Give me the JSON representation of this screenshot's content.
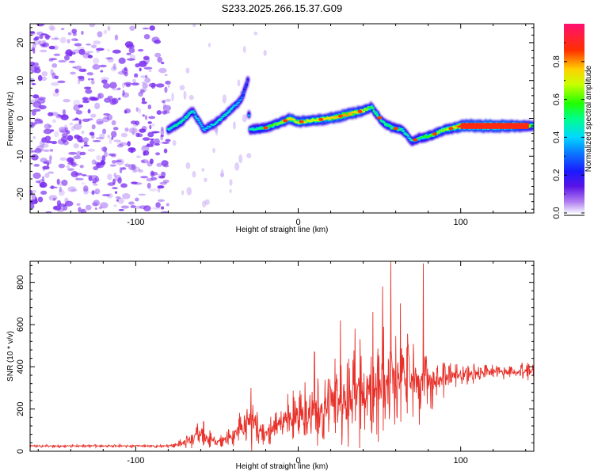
{
  "title": "S233.2025.266.15.37.G09",
  "colors": {
    "snr_line": "#e8312a",
    "scatter_blob": "#7a2cf0",
    "frame": "#000000"
  },
  "chart_data": [
    {
      "type": "heatmap",
      "name": "spectrogram",
      "xlabel": "Height of straight line (km)",
      "ylabel": "Frequency (Hz)",
      "xlim": [
        -165,
        145
      ],
      "ylim": [
        -25,
        25
      ],
      "xticks": [
        -100,
        0,
        100
      ],
      "yticks": [
        -20,
        -10,
        0,
        10,
        20
      ],
      "colorbar": {
        "label": "Normalized spectral amplitude",
        "range": [
          0,
          1
        ],
        "ticks": [
          "0.0",
          "0.2",
          "0.4",
          "0.6",
          "0.8"
        ],
        "tick_values": [
          0.0,
          0.2,
          0.4,
          0.6,
          0.8
        ]
      },
      "noise_region_x": [
        -165,
        -80
      ],
      "ridge": [
        {
          "x": -80,
          "f": -3,
          "a": 0.45
        },
        {
          "x": -72,
          "f": -1,
          "a": 0.5
        },
        {
          "x": -65,
          "f": 2,
          "a": 0.45
        },
        {
          "x": -58,
          "f": -3,
          "a": 0.4
        },
        {
          "x": -50,
          "f": -1,
          "a": 0.45
        },
        {
          "x": -42,
          "f": 2,
          "a": 0.45
        },
        {
          "x": -35,
          "f": 5,
          "a": 0.35
        },
        {
          "x": -31,
          "f": 10,
          "a": 0.25
        },
        {
          "x": -30,
          "f": -3,
          "a": 0.45
        },
        {
          "x": -20,
          "f": -2.5,
          "a": 0.55
        },
        {
          "x": -10,
          "f": -1,
          "a": 0.65
        },
        {
          "x": -5,
          "f": 0,
          "a": 0.75
        },
        {
          "x": 0,
          "f": -1,
          "a": 0.7
        },
        {
          "x": 10,
          "f": -0.5,
          "a": 0.7
        },
        {
          "x": 20,
          "f": 0,
          "a": 0.75
        },
        {
          "x": 30,
          "f": 1,
          "a": 0.8
        },
        {
          "x": 40,
          "f": 2,
          "a": 0.7
        },
        {
          "x": 45,
          "f": 3,
          "a": 0.55
        },
        {
          "x": 52,
          "f": -1,
          "a": 0.5
        },
        {
          "x": 58,
          "f": -2.5,
          "a": 0.55
        },
        {
          "x": 64,
          "f": -3,
          "a": 0.5
        },
        {
          "x": 70,
          "f": -6,
          "a": 0.45
        },
        {
          "x": 76,
          "f": -5,
          "a": 0.55
        },
        {
          "x": 82,
          "f": -4.5,
          "a": 0.6
        },
        {
          "x": 90,
          "f": -3,
          "a": 0.65
        },
        {
          "x": 96,
          "f": -2.5,
          "a": 0.7
        },
        {
          "x": 100,
          "f": -2,
          "a": 0.9
        },
        {
          "x": 110,
          "f": -2,
          "a": 0.95
        },
        {
          "x": 120,
          "f": -2,
          "a": 0.97
        },
        {
          "x": 130,
          "f": -2,
          "a": 0.9
        },
        {
          "x": 140,
          "f": -2,
          "a": 0.75
        },
        {
          "x": 145,
          "f": -2,
          "a": 0.5
        }
      ]
    },
    {
      "type": "line",
      "name": "snr",
      "xlabel": "Height of straight line (km)",
      "ylabel": "SNR (10 * v/v)",
      "xlim": [
        -165,
        145
      ],
      "ylim": [
        0,
        900
      ],
      "xticks": [
        -100,
        0,
        100
      ],
      "yticks": [
        0,
        200,
        400,
        600,
        800
      ],
      "envelope": [
        {
          "x": -165,
          "base": 25,
          "amp": 8
        },
        {
          "x": -80,
          "base": 25,
          "amp": 8
        },
        {
          "x": -70,
          "base": 40,
          "amp": 30
        },
        {
          "x": -60,
          "base": 80,
          "amp": 80
        },
        {
          "x": -50,
          "base": 45,
          "amp": 25
        },
        {
          "x": -40,
          "base": 70,
          "amp": 60
        },
        {
          "x": -28,
          "base": 150,
          "amp": 150
        },
        {
          "x": -20,
          "base": 80,
          "amp": 60
        },
        {
          "x": -10,
          "base": 150,
          "amp": 120
        },
        {
          "x": 0,
          "base": 180,
          "amp": 150
        },
        {
          "x": 10,
          "base": 170,
          "amp": 200
        },
        {
          "x": 20,
          "base": 230,
          "amp": 220
        },
        {
          "x": 30,
          "base": 250,
          "amp": 250
        },
        {
          "x": 40,
          "base": 280,
          "amp": 280
        },
        {
          "x": 50,
          "base": 310,
          "amp": 280
        },
        {
          "x": 58,
          "base": 330,
          "amp": 300
        },
        {
          "x": 65,
          "base": 340,
          "amp": 260
        },
        {
          "x": 75,
          "base": 320,
          "amp": 230
        },
        {
          "x": 85,
          "base": 330,
          "amp": 120
        },
        {
          "x": 95,
          "base": 360,
          "amp": 70
        },
        {
          "x": 110,
          "base": 370,
          "amp": 50
        },
        {
          "x": 125,
          "base": 375,
          "amp": 45
        },
        {
          "x": 145,
          "base": 380,
          "amp": 45
        }
      ],
      "peaks": [
        {
          "x": -29,
          "y": 300
        },
        {
          "x": 10,
          "y": 470
        },
        {
          "x": 26,
          "y": 620
        },
        {
          "x": 35,
          "y": 580
        },
        {
          "x": 46,
          "y": 660
        },
        {
          "x": 52,
          "y": 780
        },
        {
          "x": 57,
          "y": 910
        },
        {
          "x": 63,
          "y": 700
        },
        {
          "x": 77,
          "y": 890
        }
      ]
    }
  ]
}
